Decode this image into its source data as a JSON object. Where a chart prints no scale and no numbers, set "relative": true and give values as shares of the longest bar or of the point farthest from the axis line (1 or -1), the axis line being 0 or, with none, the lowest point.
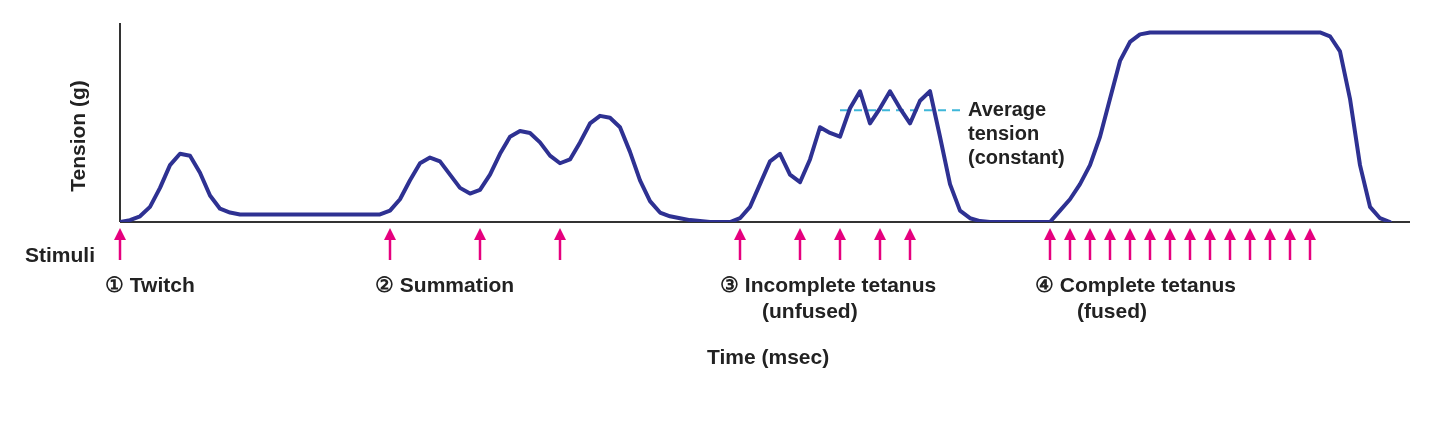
{
  "chart_data": {
    "type": "line",
    "relative": true,
    "ylabel": "Tension (g)",
    "categories": [
      null,
      null,
      null,
      null,
      null,
      null,
      null,
      null,
      null,
      null,
      null,
      null,
      null,
      null,
      null,
      null,
      null,
      null,
      null,
      null,
      null,
      null,
      null,
      null,
      null,
      null,
      null,
      null,
      null,
      null,
      null,
      null,
      null,
      null,
      null,
      null,
      null,
      null,
      null,
      null,
      null,
      null,
      null,
      null,
      null,
      null,
      null,
      null,
      null,
      null,
      null,
      null,
      null,
      null,
      null,
      null,
      null,
      null,
      null,
      null,
      null,
      null,
      null,
      null,
      null,
      null,
      null,
      null,
      null,
      null,
      null,
      null,
      null,
      null,
      null,
      null,
      null,
      null,
      null,
      null,
      null,
      null,
      null,
      null,
      null,
      null,
      null,
      null,
      null,
      null,
      null,
      null,
      null,
      null,
      null,
      null,
      null,
      null,
      null,
      null,
      null,
      null,
      null,
      null,
      null,
      null,
      null,
      null,
      null,
      null,
      null,
      null,
      null,
      null,
      null,
      null,
      null,
      null,
      null,
      null,
      null,
      null,
      null,
      null,
      null,
      null,
      null,
      null
    ],
    "series": [
      {
        "color": "#2e3192",
        "values": [
          0,
          0.01,
          0.03,
          0.08,
          0.18,
          0.3,
          0.36,
          0.35,
          0.26,
          0.14,
          0.07,
          0.05,
          0.04,
          0.04,
          0.04,
          0.04,
          0.04,
          0.04,
          0.04,
          0.04,
          0.04,
          0.04,
          0.04,
          0.04,
          0.04,
          0.04,
          0.04,
          0.06,
          0.12,
          0.22,
          0.31,
          0.34,
          0.32,
          0.25,
          0.18,
          0.15,
          0.17,
          0.25,
          0.36,
          0.45,
          0.48,
          0.47,
          0.42,
          0.35,
          0.31,
          0.33,
          0.42,
          0.52,
          0.56,
          0.55,
          0.5,
          0.37,
          0.22,
          0.11,
          0.05,
          0.03,
          0.02,
          0.01,
          0.005,
          0,
          0,
          0,
          0.02,
          0.08,
          0.2,
          0.32,
          0.36,
          0.25,
          0.21,
          0.33,
          0.5,
          0.47,
          0.45,
          0.6,
          0.69,
          0.52,
          0.6,
          0.69,
          0.6,
          0.52,
          0.64,
          0.69,
          0.45,
          0.2,
          0.06,
          0.02,
          0.005,
          0,
          null,
          null,
          null,
          null,
          null,
          0,
          0.06,
          0.12,
          0.2,
          0.3,
          0.45,
          0.65,
          0.85,
          0.95,
          0.99,
          1,
          1,
          1,
          1,
          1,
          1,
          1,
          1,
          1,
          1,
          1,
          1,
          1,
          1,
          1,
          1,
          1,
          1,
          0.98,
          0.9,
          0.65,
          0.3,
          0.08,
          0.02,
          0
        ]
      }
    ],
    "ref_lines": [
      {
        "axis": "y",
        "value": 0.59,
        "label": "Average\ntension\n(constant)",
        "color": "#3fb7d9",
        "line_style": "dashed"
      }
    ],
    "annotations": [
      "Stimuli",
      "① Twitch",
      "② Summation",
      "③ Incomplete tetanus\n(unfused)",
      "④ Complete tetanus\n(fused)",
      "Time (msec)"
    ]
  }
}
